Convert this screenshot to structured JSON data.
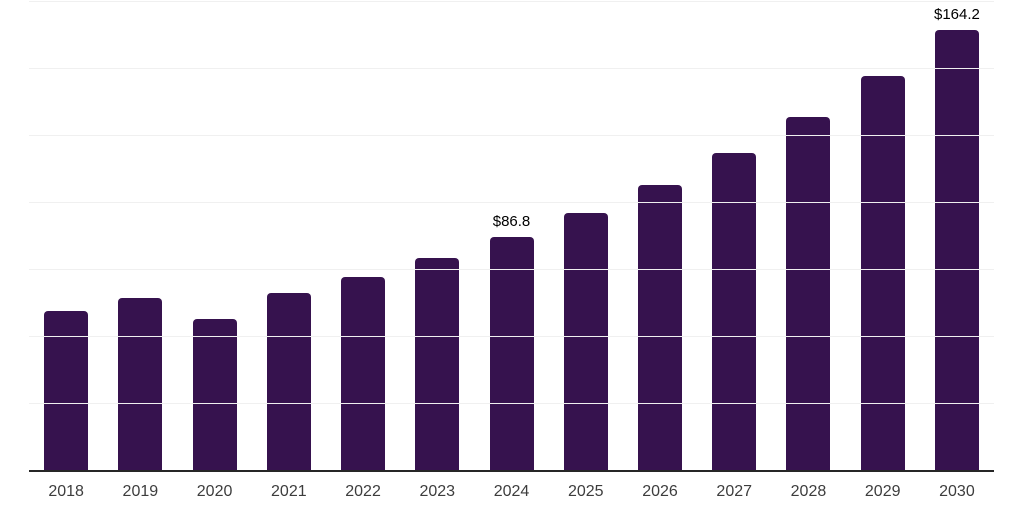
{
  "chart_data": {
    "type": "bar",
    "categories": [
      "2018",
      "2019",
      "2020",
      "2021",
      "2022",
      "2023",
      "2024",
      "2025",
      "2026",
      "2027",
      "2028",
      "2029",
      "2030"
    ],
    "values": [
      59.2,
      64.2,
      56.2,
      66.0,
      72.1,
      79.1,
      86.8,
      95.9,
      106.5,
      118.2,
      131.7,
      147.0,
      164.2
    ],
    "value_labels": {
      "2024": "$86.8",
      "2030": "$164.2"
    },
    "title": "",
    "xlabel": "",
    "ylabel": "",
    "ylim": [
      0,
      175
    ],
    "gridline_step": 25,
    "grid": true,
    "legend_position": "none",
    "colors": {
      "bar": "#36124E",
      "axis_line": "#262626",
      "gridline": "#f0f0f0",
      "tick_label": "#3d3d3d",
      "value_label": "#000000",
      "background": "#ffffff"
    }
  }
}
